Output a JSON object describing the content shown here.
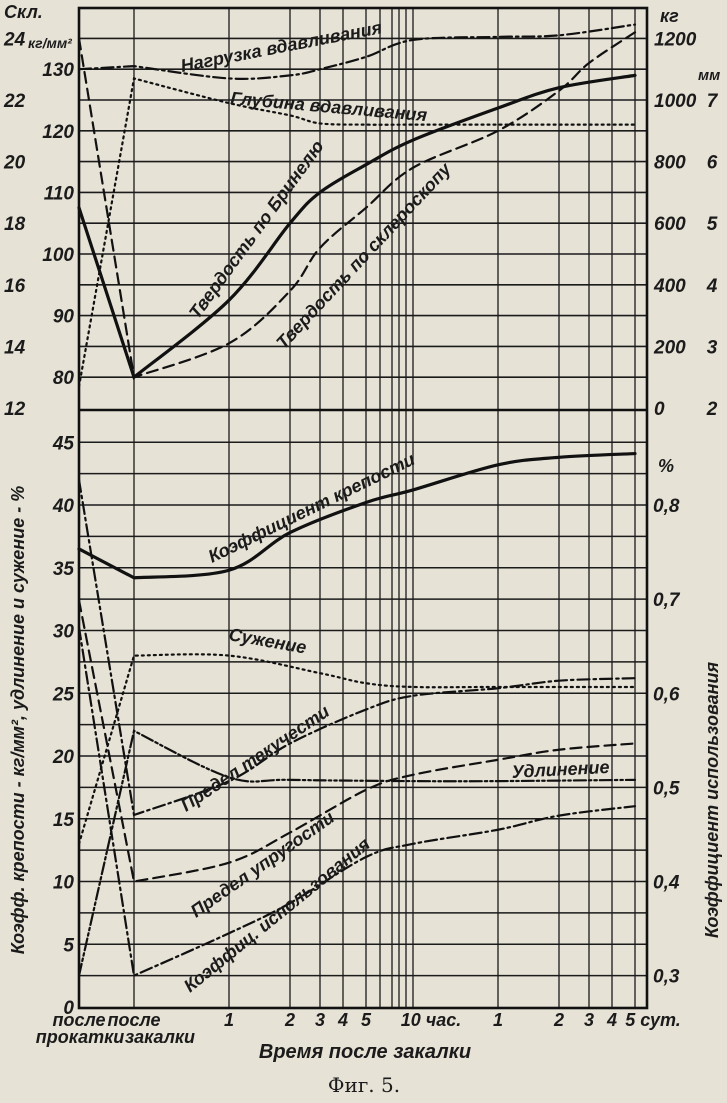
{
  "chart_data": {
    "type": "line",
    "caption": "Фиг. 5.",
    "xlabel": "Время после закалки",
    "x_ticks": [
      {
        "x": "после прокатки",
        "label": "после"
      },
      {
        "x": "после закалки",
        "label": "после"
      },
      {
        "x": 1,
        "label": "1"
      },
      {
        "x": 2,
        "label": "2"
      },
      {
        "x": 3,
        "label": "3"
      },
      {
        "x": 4,
        "label": "4"
      },
      {
        "x": 5,
        "label": "5"
      },
      {
        "x": 10,
        "label": "10 час."
      },
      {
        "x": 24,
        "label": "1"
      },
      {
        "x": 48,
        "label": "2"
      },
      {
        "x": 72,
        "label": "3"
      },
      {
        "x": 96,
        "label": "4"
      },
      {
        "x": 120,
        "label": "5 сут."
      }
    ],
    "x_tick_sublabels": [
      "прокатки",
      "закалки"
    ],
    "x_scale": "logarithmic (hours), with categorical start points",
    "grid": true,
    "axes": {
      "scleroscope": {
        "unit_label": "Скл.",
        "ticks": [
          12,
          14,
          16,
          18,
          20,
          22,
          24
        ],
        "side": "left-outer",
        "section": "top"
      },
      "brinell": {
        "unit_label": "кг/мм²",
        "ticks": [
          80,
          90,
          100,
          110,
          120,
          130
        ],
        "side": "left",
        "section": "top"
      },
      "load": {
        "unit_label": "кг",
        "ticks": [
          0,
          200,
          400,
          600,
          800,
          1000,
          1200
        ],
        "side": "right",
        "section": "top"
      },
      "depth": {
        "unit_label": "мм",
        "ticks": [
          2,
          3,
          4,
          5,
          6,
          7
        ],
        "side": "right-outer",
        "section": "top"
      },
      "percent": {
        "label": "Коэфф. крепости - кг/мм², удлинение и сужение - %",
        "ticks": [
          0,
          5,
          10,
          15,
          20,
          25,
          30,
          35,
          40,
          45
        ],
        "side": "left",
        "section": "bottom"
      },
      "utilization": {
        "label": "Коэффициент использования",
        "unit_label": "%",
        "ticks": [
          "0,3",
          "0,4",
          "0,5",
          "0,6",
          "0,7",
          "0,8"
        ],
        "values": [
          0.3,
          0.4,
          0.5,
          0.6,
          0.7,
          0.8
        ],
        "side": "right",
        "section": "bottom"
      }
    },
    "series": [
      {
        "name": "Нагрузка вдавливания",
        "axis": "load",
        "style": "dash-dot",
        "points": [
          [
            "после прокатки",
            1100
          ],
          [
            "после закалки",
            1110
          ],
          [
            1,
            1070
          ],
          [
            2,
            1080
          ],
          [
            3,
            1100
          ],
          [
            5,
            1140
          ],
          [
            10,
            1195
          ],
          [
            24,
            1205
          ],
          [
            48,
            1210
          ],
          [
            120,
            1245
          ]
        ]
      },
      {
        "name": "Глубина вдавливания",
        "axis": "depth",
        "style": "dotted",
        "points": [
          [
            "после прокатки",
            2.35
          ],
          [
            "после закалки",
            7.35
          ],
          [
            1,
            6.95
          ],
          [
            2,
            6.75
          ],
          [
            3,
            6.62
          ],
          [
            5,
            6.6
          ],
          [
            10,
            6.6
          ],
          [
            24,
            6.6
          ],
          [
            120,
            6.6
          ]
        ]
      },
      {
        "name": "Твердость по Бринелю",
        "axis": "brinell",
        "style": "solid",
        "points": [
          [
            "после прокатки",
            107.5
          ],
          [
            "после закалки",
            80
          ],
          [
            1,
            92.5
          ],
          [
            2,
            105
          ],
          [
            3,
            110
          ],
          [
            5,
            114.5
          ],
          [
            10,
            118.5
          ],
          [
            24,
            123.7
          ],
          [
            48,
            127
          ],
          [
            120,
            129
          ]
        ]
      },
      {
        "name": "Твердость по склероскопу",
        "axis": "scleroscope",
        "style": "dashed",
        "points": [
          [
            "после прокатки",
            24
          ],
          [
            "после закалки",
            13
          ],
          [
            1,
            14.1
          ],
          [
            2,
            15.8
          ],
          [
            3,
            17.2
          ],
          [
            5,
            18.5
          ],
          [
            10,
            19.8
          ],
          [
            24,
            21
          ],
          [
            48,
            22.3
          ],
          [
            72,
            23.2
          ],
          [
            120,
            24.2
          ]
        ]
      },
      {
        "name": "Коэффициент крепости",
        "axis": "percent",
        "style": "solid",
        "points": [
          [
            "после прокатки",
            36.5
          ],
          [
            "после закалки",
            34.2
          ],
          [
            1,
            34.8
          ],
          [
            2,
            37.8
          ],
          [
            5,
            40.2
          ],
          [
            10,
            41.2
          ],
          [
            24,
            43.2
          ],
          [
            48,
            43.8
          ],
          [
            120,
            44.1
          ]
        ]
      },
      {
        "name": "Сужение",
        "axis": "percent",
        "style": "dotted",
        "points": [
          [
            "после прокатки",
            13
          ],
          [
            "после закалки",
            28
          ],
          [
            1,
            28
          ],
          [
            3,
            26.6
          ],
          [
            5,
            25.8
          ],
          [
            10,
            25.5
          ],
          [
            24,
            25.5
          ],
          [
            120,
            25.5
          ]
        ]
      },
      {
        "name": "Предел текучести",
        "axis": "percent",
        "style": "dash-dot",
        "points": [
          [
            "после прокатки",
            42
          ],
          [
            "после закалки",
            15.3
          ],
          [
            1,
            18
          ],
          [
            2,
            21
          ],
          [
            5,
            23.7
          ],
          [
            10,
            24.8
          ],
          [
            24,
            25.4
          ],
          [
            48,
            26
          ],
          [
            120,
            26.2
          ]
        ]
      },
      {
        "name": "Удлинение",
        "axis": "percent",
        "style": "dash-dot-dot",
        "points": [
          [
            "после прокатки",
            2.5
          ],
          [
            "после закалки",
            22
          ],
          [
            1,
            18.3
          ],
          [
            2,
            18.1
          ],
          [
            10,
            18
          ],
          [
            24,
            18
          ],
          [
            120,
            18.1
          ]
        ]
      },
      {
        "name": "Предел упругости",
        "axis": "percent",
        "style": "dashed",
        "points": [
          [
            "после прокатки",
            32.4
          ],
          [
            "после закалки",
            10
          ],
          [
            1,
            11.5
          ],
          [
            2,
            13.9
          ],
          [
            5,
            17.3
          ],
          [
            10,
            18.5
          ],
          [
            24,
            19.7
          ],
          [
            48,
            20.5
          ],
          [
            120,
            21
          ]
        ]
      },
      {
        "name": "Коэффиц. использования",
        "axis": "utilization",
        "style": "dash-dot",
        "points": [
          [
            "после прокатки",
            0.67
          ],
          [
            "после закалки",
            0.3
          ],
          [
            1,
            0.345
          ],
          [
            2,
            0.377
          ],
          [
            5,
            0.426
          ],
          [
            10,
            0.44
          ],
          [
            24,
            0.455
          ],
          [
            48,
            0.47
          ],
          [
            120,
            0.48
          ]
        ]
      }
    ]
  }
}
